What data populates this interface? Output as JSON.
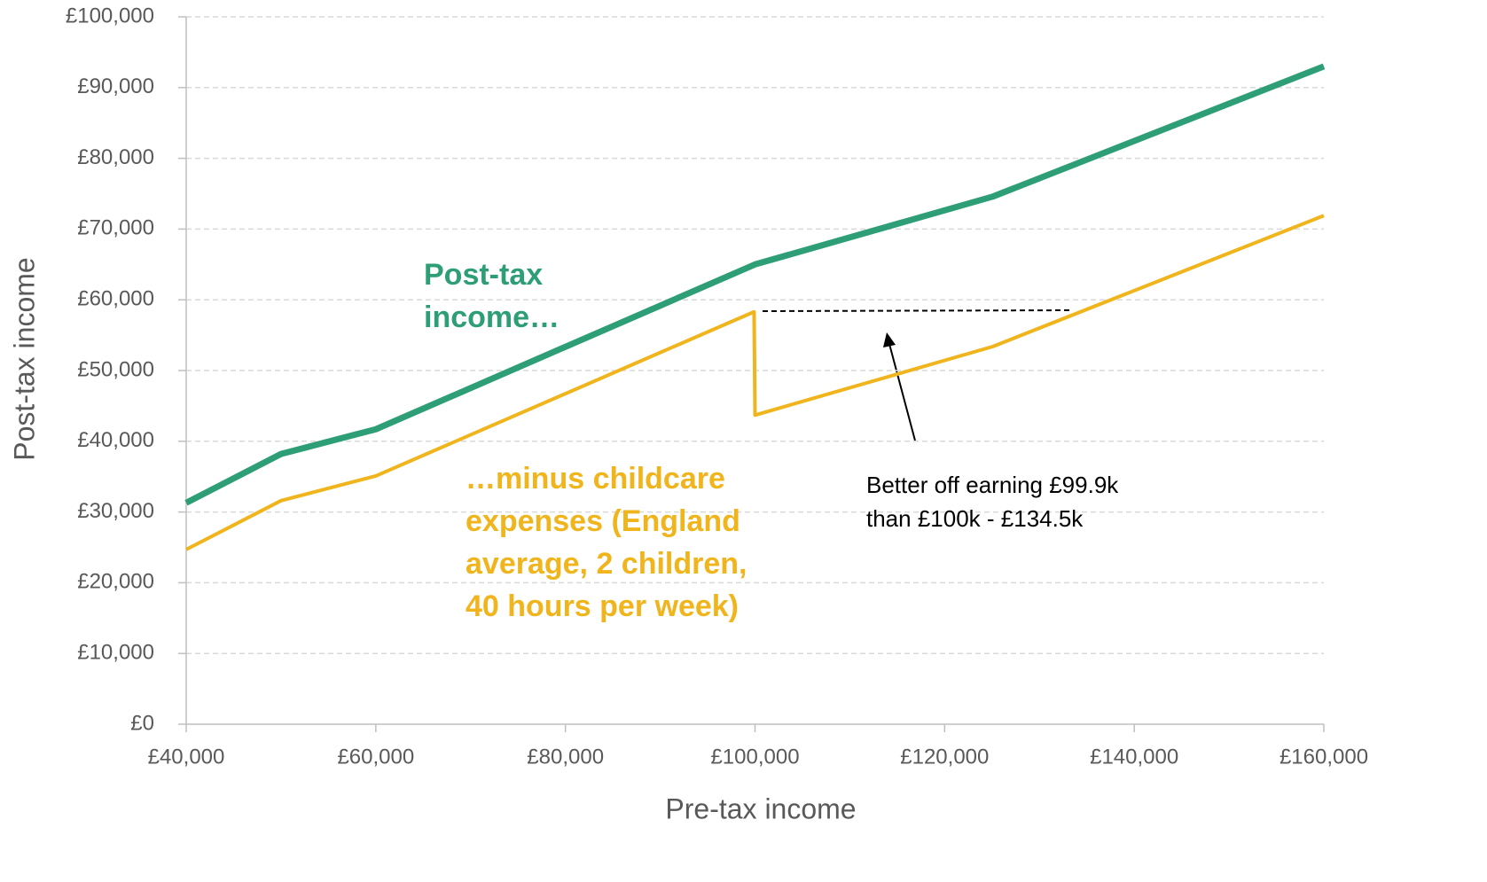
{
  "chart_data": {
    "type": "line",
    "x_label": "Pre-tax income",
    "y_label": "Post-tax income",
    "xlim": [
      40000,
      160000
    ],
    "xticks": [
      {
        "value": 40000,
        "label": "£40,000"
      },
      {
        "value": 60000,
        "label": "£60,000"
      },
      {
        "value": 80000,
        "label": "£80,000"
      },
      {
        "value": 100000,
        "label": "£100,000"
      },
      {
        "value": 120000,
        "label": "£120,000"
      },
      {
        "value": 140000,
        "label": "£140,000"
      },
      {
        "value": 160000,
        "label": "£160,000"
      }
    ],
    "ylim": [
      0,
      100000
    ],
    "yticks": [
      {
        "value": 0,
        "label": "£0"
      },
      {
        "value": 10000,
        "label": "£10,000"
      },
      {
        "value": 20000,
        "label": "£20,000"
      },
      {
        "value": 30000,
        "label": "£30,000"
      },
      {
        "value": 40000,
        "label": "£40,000"
      },
      {
        "value": 50000,
        "label": "£50,000"
      },
      {
        "value": 60000,
        "label": "£60,000"
      },
      {
        "value": 70000,
        "label": "£70,000"
      },
      {
        "value": 80000,
        "label": "£80,000"
      },
      {
        "value": 90000,
        "label": "£90,000"
      },
      {
        "value": 100000,
        "label": "£100,000"
      }
    ],
    "grid": true,
    "series": [
      {
        "color": "#2e9e77",
        "x": [
          40000,
          50000,
          60000,
          100000,
          125100,
          160000
        ],
        "values": [
          31300,
          38200,
          41700,
          65000,
          74600,
          93000
        ]
      },
      {
        "color": "#f0b41c",
        "x": [
          40000,
          50000,
          60000,
          99900,
          100000,
          125100,
          160000
        ],
        "values": [
          24700,
          31600,
          35100,
          58300,
          43700,
          53400,
          71900
        ]
      }
    ],
    "annotations": [
      {
        "lines": [
          "Post-tax",
          "income…"
        ],
        "color": "#2e9e77"
      },
      {
        "lines": [
          "…minus childcare",
          "expenses (England",
          "average, 2 children,",
          "40 hours per week)"
        ],
        "color": "#f0b41c"
      },
      {
        "lines": [
          "Better off earning £99.9k",
          "than £100k - £134.5k"
        ],
        "color": "#000000"
      }
    ]
  }
}
